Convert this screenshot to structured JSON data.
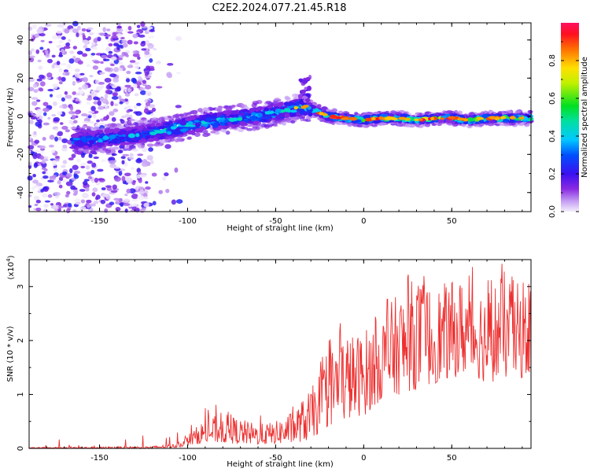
{
  "title": "C2E2.2024.077.21.45.R18",
  "chart_data": [
    {
      "type": "heatmap",
      "xlabel": "Height of straight line (km)",
      "ylabel": "Frequency (Hz)",
      "xlim": [
        -190,
        95
      ],
      "ylim": [
        -50,
        49
      ],
      "xticks": [
        -150,
        -100,
        -50,
        0,
        50
      ],
      "yticks": [
        -40,
        -20,
        0,
        20,
        40
      ],
      "ridge": {
        "x": [
          -165,
          -150,
          -130,
          -110,
          -90,
          -70,
          -50,
          -40,
          -33,
          -28,
          -20,
          -10,
          0,
          10,
          20,
          30,
          40,
          50,
          60,
          70,
          80,
          90,
          95
        ],
        "y": [
          -13,
          -12,
          -10,
          -7,
          -3,
          -1,
          2,
          4,
          5,
          3,
          0,
          -1,
          -2,
          -1,
          -1,
          -2,
          -1,
          -1,
          -2,
          -1,
          -1,
          -1,
          -1
        ]
      },
      "colorbar": {
        "label": "Normalized spectral amplitude",
        "ticks": [
          "0.0",
          "0.2",
          "0.4",
          "0.6",
          "0.8"
        ],
        "range": [
          0,
          1
        ]
      }
    },
    {
      "type": "line",
      "xlabel": "Height of straight line (km)",
      "ylabel": "SNR (10 * v/v)",
      "scale_label": "(x10",
      "scale_exp": "4",
      "scale_close": ")",
      "xlim": [
        -190,
        95
      ],
      "ylim": [
        0,
        3.5
      ],
      "xticks": [
        -150,
        -100,
        -50,
        0,
        50
      ],
      "yticks": [
        0,
        1,
        2,
        3
      ],
      "color": "#ee3030",
      "envelope": {
        "x": [
          -190,
          -150,
          -120,
          -105,
          -100,
          -90,
          -80,
          -70,
          -60,
          -50,
          -40,
          -30,
          -25,
          -20,
          -15,
          -10,
          -5,
          0,
          10,
          20,
          30,
          40,
          50,
          60,
          70,
          80,
          90,
          95
        ],
        "low": [
          0.0,
          0.0,
          0.0,
          0.02,
          0.05,
          0.1,
          0.1,
          0.08,
          0.07,
          0.08,
          0.1,
          0.15,
          0.3,
          0.4,
          0.5,
          0.5,
          0.6,
          0.6,
          0.9,
          1.0,
          1.1,
          1.2,
          1.3,
          1.4,
          1.2,
          1.3,
          1.3,
          1.4
        ],
        "high": [
          0.02,
          0.03,
          0.04,
          0.1,
          0.25,
          0.55,
          0.65,
          0.55,
          0.45,
          0.5,
          0.7,
          1.1,
          1.4,
          1.8,
          2.1,
          2.2,
          2.1,
          2.2,
          2.5,
          2.9,
          3.2,
          3.0,
          3.1,
          3.2,
          3.0,
          3.3,
          3.0,
          2.8
        ]
      }
    }
  ]
}
